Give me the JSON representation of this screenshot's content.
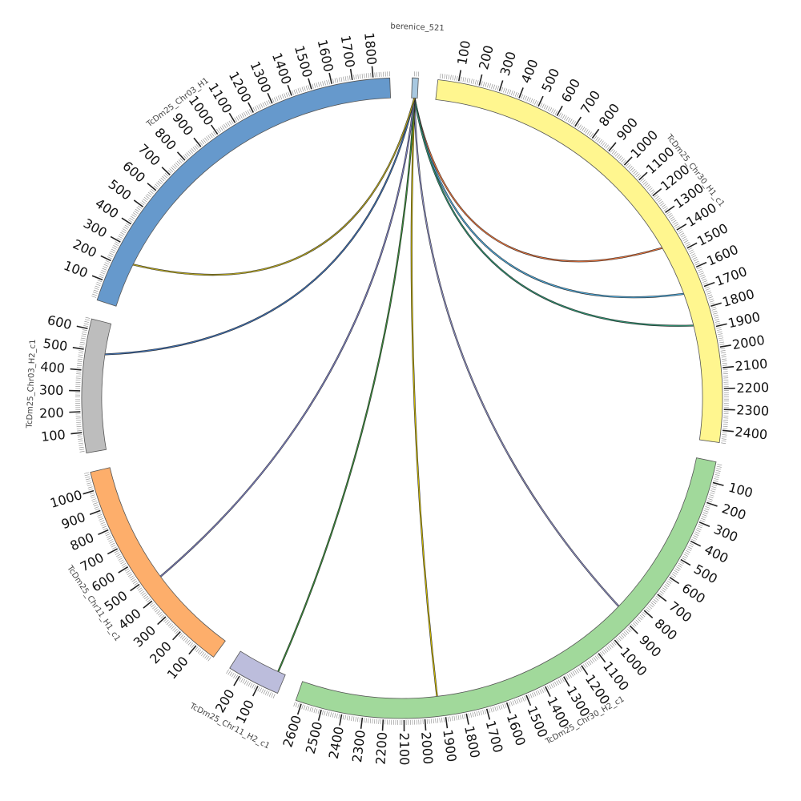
{
  "chart_data": {
    "type": "chord",
    "tick_interval": 100,
    "minor_tick_interval": 10,
    "segments": [
      {
        "name": "berenice_521",
        "length": 30,
        "color": "#a8c8e0"
      },
      {
        "name": "TcDm25_Chr30_H1_c1",
        "length": 2460,
        "color": "#fff68f"
      },
      {
        "name": "TcDm25_Chr30_H2_c1",
        "length": 2630,
        "color": "#a1d99b"
      },
      {
        "name": "TcDm25_Chr11_H2_c1",
        "length": 260,
        "color": "#bcbddc"
      },
      {
        "name": "TcDm25_Chr11_H1_c1",
        "length": 1090,
        "color": "#fdae6b"
      },
      {
        "name": "TcDm25_Chr03_H2_c1",
        "length": 650,
        "color": "#bdbdbd"
      },
      {
        "name": "TcDm25_Chr03_H1",
        "length": 1880,
        "color": "#6699cc"
      }
    ],
    "links": [
      {
        "from": "berenice_521",
        "from_pos": 15,
        "to": "TcDm25_Chr30_H1_c1",
        "to_pos": 1440,
        "color": "#e5733d"
      },
      {
        "from": "berenice_521",
        "from_pos": 15,
        "to": "TcDm25_Chr30_H1_c1",
        "to_pos": 1700,
        "color": "#4ea6d6"
      },
      {
        "from": "berenice_521",
        "from_pos": 15,
        "to": "TcDm25_Chr30_H1_c1",
        "to_pos": 1870,
        "color": "#2f8f6f"
      },
      {
        "from": "berenice_521",
        "from_pos": 15,
        "to": "TcDm25_Chr30_H2_c1",
        "to_pos": 870,
        "color": "#8a8cc0"
      },
      {
        "from": "berenice_521",
        "from_pos": 15,
        "to": "TcDm25_Chr30_H2_c1",
        "to_pos": 1930,
        "color": "#c8b400"
      },
      {
        "from": "berenice_521",
        "from_pos": 15,
        "to": "TcDm25_Chr11_H2_c1",
        "to_pos": 40,
        "color": "#3a8a3a"
      },
      {
        "from": "berenice_521",
        "from_pos": 15,
        "to": "TcDm25_Chr11_H1_c1",
        "to_pos": 470,
        "color": "#7c7fbf"
      },
      {
        "from": "berenice_521",
        "from_pos": 15,
        "to": "TcDm25_Chr03_H2_c1",
        "to_pos": 490,
        "color": "#3f6fb0"
      },
      {
        "from": "berenice_521",
        "from_pos": 15,
        "to": "TcDm25_Chr03_H1",
        "to_pos": 230,
        "color": "#b0a020"
      }
    ]
  }
}
